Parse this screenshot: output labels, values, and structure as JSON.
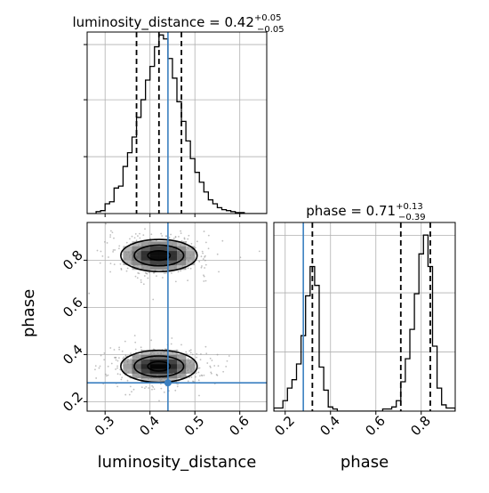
{
  "chart_data": {
    "type": "corner",
    "parameters": [
      "luminosity_distance",
      "phase"
    ],
    "truth": {
      "luminosity_distance": 0.44,
      "phase": 0.28
    },
    "panels": [
      {
        "id": "luminosity_distance-marginal",
        "type": "histogram",
        "title_main": "luminosity_distance = 0.42",
        "title_plus": "+0.05",
        "title_minus": "−0.05",
        "xlim": [
          0.26,
          0.66
        ],
        "bins_x": [
          0.26,
          0.27,
          0.28,
          0.29,
          0.3,
          0.31,
          0.32,
          0.33,
          0.34,
          0.35,
          0.36,
          0.37,
          0.38,
          0.39,
          0.4,
          0.41,
          0.42,
          0.43,
          0.44,
          0.45,
          0.46,
          0.47,
          0.48,
          0.49,
          0.5,
          0.51,
          0.52,
          0.53,
          0.54,
          0.55,
          0.56,
          0.57,
          0.58,
          0.59,
          0.6,
          0.61,
          0.62,
          0.63,
          0.64,
          0.65,
          0.66
        ],
        "counts": [
          0,
          0,
          2,
          3,
          10,
          12,
          26,
          28,
          48,
          62,
          78,
          98,
          116,
          136,
          150,
          170,
          182,
          178,
          158,
          138,
          114,
          94,
          74,
          56,
          42,
          32,
          22,
          14,
          10,
          6,
          4,
          3,
          2,
          1,
          1,
          0,
          0,
          0,
          0,
          0
        ],
        "ymax": 185,
        "quantiles": [
          0.37,
          0.42,
          0.47
        ]
      },
      {
        "id": "phase-marginal",
        "type": "histogram",
        "title_main": "phase = 0.71",
        "title_plus": "+0.13",
        "title_minus": "−0.39",
        "xlim": [
          0.15,
          0.95
        ],
        "bins_x": [
          0.15,
          0.17,
          0.19,
          0.21,
          0.23,
          0.25,
          0.27,
          0.29,
          0.31,
          0.33,
          0.35,
          0.37,
          0.39,
          0.41,
          0.43,
          0.45,
          0.47,
          0.49,
          0.51,
          0.53,
          0.55,
          0.57,
          0.59,
          0.61,
          0.63,
          0.65,
          0.67,
          0.69,
          0.71,
          0.73,
          0.75,
          0.77,
          0.79,
          0.81,
          0.83,
          0.85,
          0.87,
          0.89,
          0.91,
          0.93,
          0.95
        ],
        "counts": [
          3,
          3,
          10,
          22,
          30,
          45,
          72,
          110,
          138,
          120,
          42,
          20,
          4,
          2,
          0,
          0,
          0,
          0,
          0,
          0,
          0,
          0,
          0,
          0,
          2,
          2,
          4,
          10,
          28,
          50,
          78,
          112,
          150,
          168,
          138,
          62,
          22,
          6,
          3,
          3
        ],
        "ymax": 180,
        "quantiles": [
          0.32,
          0.71,
          0.84
        ]
      },
      {
        "id": "joint-2d",
        "type": "2d-density",
        "xlim": [
          0.26,
          0.66
        ],
        "ylim": [
          0.16,
          0.96
        ],
        "xlabel": "luminosity_distance",
        "ylabel": "phase",
        "xticks": [
          "0.3",
          "0.4",
          "0.5",
          "0.6"
        ],
        "yticks": [
          "0.2",
          "0.4",
          "0.6",
          "0.8"
        ],
        "modes": [
          {
            "x": 0.42,
            "y": 0.82,
            "sx": 0.05,
            "sy": 0.04
          },
          {
            "x": 0.42,
            "y": 0.35,
            "sx": 0.05,
            "sy": 0.04
          }
        ],
        "scatter_seed": 7
      }
    ],
    "bottom_xticks_phase": [
      "0.2",
      "0.4",
      "0.6",
      "0.8"
    ],
    "bottom_xlabel_phase": "phase",
    "grid": true,
    "colors": {
      "hist": "#000000",
      "truth": "#3a7fc0",
      "density": "#000000",
      "grid": "#b0b0b0"
    }
  }
}
